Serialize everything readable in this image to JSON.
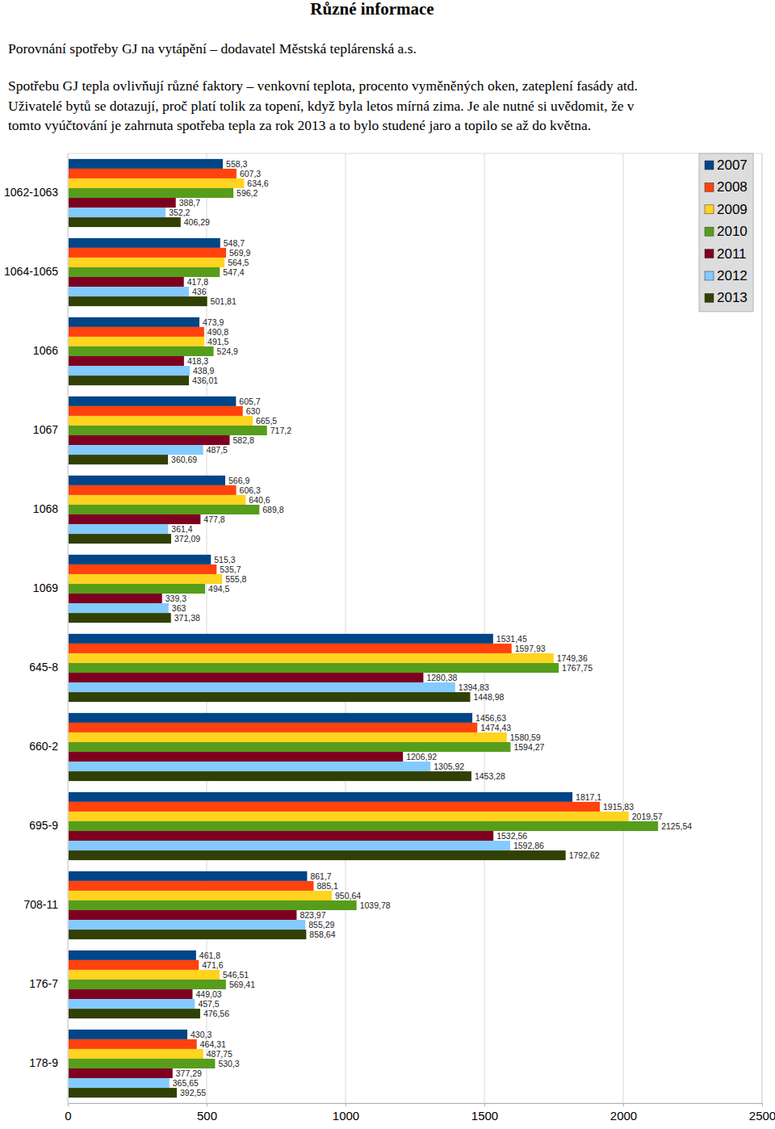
{
  "chart_data": {
    "type": "bar",
    "title": "Různé informace",
    "subtitle": "Porovnání spotřeby GJ na vytápění – dodavatel Městská teplárenská a.s.",
    "annotations": [
      "Spotřebu GJ tepla ovlivňují různé faktory – venkovní teplota, procento vyměněných oken, zateplení fasády atd.",
      "Uživatelé bytů se dotazují, proč platí tolik za topení, když byla letos mírná zima. Je ale nutné si uvědomit, že v",
      "tomto vyúčtování je zahrnuta spotřeba tepla za rok 2013 a to bylo studené jaro a topilo se až do května."
    ],
    "orientation": "horizontal",
    "grid": true,
    "legend": "top-right",
    "data_labels": true,
    "categories": [
      "1062-1063",
      "1064-1065",
      "1066",
      "1067",
      "1068",
      "1069",
      "645-8",
      "660-2",
      "695-9",
      "708-11",
      "176-7",
      "178-9"
    ],
    "xlim": [
      0,
      2500
    ],
    "xticks": [
      0,
      500,
      1000,
      1500,
      2000,
      2500
    ],
    "series": [
      {
        "name": "2007",
        "color": "#004586",
        "values": [
          558.3,
          548.7,
          473.9,
          605.7,
          566.9,
          515.3,
          1531.45,
          1456.63,
          1817.1,
          861.7,
          461.8,
          430.3
        ],
        "value_labels": [
          "558,3",
          "548,7",
          "473,9",
          "605,7",
          "566,9",
          "515,3",
          "1531,45",
          "1456,63",
          "1817,1",
          "861,7",
          "461,8",
          "430,3"
        ]
      },
      {
        "name": "2008",
        "color": "#ff420e",
        "values": [
          607.3,
          569.9,
          490.8,
          630,
          606.3,
          535.7,
          1597.93,
          1474.43,
          1915.83,
          885.1,
          471.6,
          464.31
        ],
        "value_labels": [
          "607,3",
          "569,9",
          "490,8",
          "630",
          "606,3",
          "535,7",
          "1597,93",
          "1474,43",
          "1915,83",
          "885,1",
          "471,6",
          "464,31"
        ]
      },
      {
        "name": "2009",
        "color": "#ffd320",
        "values": [
          634.6,
          564.5,
          491.5,
          665.5,
          640.6,
          555.8,
          1749.36,
          1580.59,
          2019.57,
          950.64,
          546.51,
          487.75
        ],
        "value_labels": [
          "634,6",
          "564,5",
          "491,5",
          "665,5",
          "640,6",
          "555,8",
          "1749,36",
          "1580,59",
          "2019,57",
          "950,64",
          "546,51",
          "487,75"
        ]
      },
      {
        "name": "2010",
        "color": "#579d1c",
        "values": [
          596.2,
          547.4,
          524.9,
          717.2,
          689.8,
          494.5,
          1767.75,
          1594.27,
          2125.54,
          1039.78,
          569.41,
          530.3
        ],
        "value_labels": [
          "596,2",
          "547,4",
          "524,9",
          "717,2",
          "689,8",
          "494,5",
          "1767,75",
          "1594,27",
          "2125,54",
          "1039,78",
          "569,41",
          "530,3"
        ]
      },
      {
        "name": "2011",
        "color": "#7e0021",
        "values": [
          388.7,
          417.8,
          418.3,
          582.8,
          477.8,
          339.3,
          1280.38,
          1206.92,
          1532.56,
          823.97,
          449.03,
          377.29
        ],
        "value_labels": [
          "388,7",
          "417,8",
          "418,3",
          "582,8",
          "477,8",
          "339,3",
          "1280,38",
          "1206,92",
          "1532,56",
          "823,97",
          "449,03",
          "377,29"
        ]
      },
      {
        "name": "2012",
        "color": "#83caff",
        "values": [
          352.2,
          436,
          438.9,
          487.5,
          361.4,
          363,
          1394.83,
          1305.92,
          1592.86,
          855.29,
          457.5,
          365.65
        ],
        "value_labels": [
          "352,2",
          "436",
          "438,9",
          "487,5",
          "361,4",
          "363",
          "1394,83",
          "1305,92",
          "1592,86",
          "855,29",
          "457,5",
          "365,65"
        ]
      },
      {
        "name": "2013",
        "color": "#314004",
        "values": [
          406.29,
          501.81,
          436.01,
          360.69,
          372.09,
          371.38,
          1448.98,
          1453.28,
          1792.62,
          858.64,
          476.56,
          392.55
        ],
        "value_labels": [
          "406,29",
          "501,81",
          "436,01",
          "360,69",
          "372,09",
          "371,38",
          "1448,98",
          "1453,28",
          "1792,62",
          "858,64",
          "476,56",
          "392,55"
        ]
      }
    ]
  }
}
